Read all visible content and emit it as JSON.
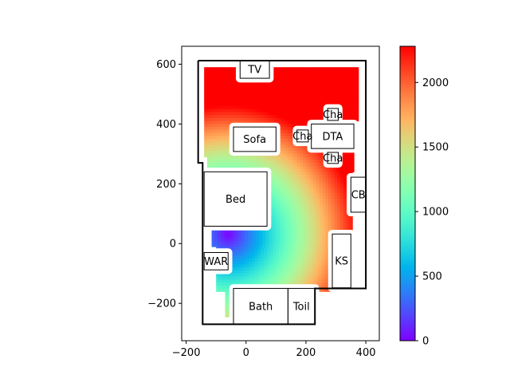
{
  "chart_data": {
    "type": "heatmap",
    "title": "",
    "xlabel": "",
    "ylabel": "",
    "xlim": [
      -215,
      445
    ],
    "ylim": [
      -325,
      660
    ],
    "x_ticks": [
      -200,
      0,
      200,
      400
    ],
    "y_ticks": [
      -200,
      0,
      200,
      400,
      600
    ],
    "x_tick_labels": [
      "−200",
      "0",
      "200",
      "400"
    ],
    "y_tick_labels": [
      "−200",
      "0",
      "200",
      "400",
      "600"
    ],
    "grid": false,
    "colorbar": {
      "colormap": "rainbow",
      "min": 0,
      "max": 2280,
      "ticks": [
        0,
        500,
        1000,
        1500,
        2000
      ],
      "tick_labels": [
        "0",
        "500",
        "1000",
        "1500",
        "2000"
      ]
    },
    "walls": [
      [
        -160,
        612
      ],
      [
        -160,
        270
      ],
      [
        -145,
        270
      ],
      [
        -145,
        -270
      ],
      [
        230,
        -270
      ],
      [
        230,
        -150
      ],
      [
        400,
        -150
      ],
      [
        400,
        612
      ],
      [
        -160,
        612
      ]
    ],
    "heat_source": [
      -60,
      30
    ],
    "heat_scale": 5.3,
    "heat_regions": [
      [
        -140,
        590,
        375,
        410
      ],
      [
        -140,
        410,
        360,
        290
      ],
      [
        -130,
        290,
        360,
        240
      ],
      [
        -115,
        240,
        355,
        -10
      ],
      [
        -100,
        -10,
        280,
        -160
      ],
      [
        -70,
        -160,
        -45,
        -245
      ]
    ],
    "furniture": [
      {
        "label": "TV",
        "x": [
          -20,
          78
        ],
        "y": [
          553,
          612
        ]
      },
      {
        "label": "Sofa",
        "x": [
          -42,
          100
        ],
        "y": [
          308,
          390
        ]
      },
      {
        "label": "Cha",
        "x": [
          170,
          208
        ],
        "y": [
          340,
          380
        ]
      },
      {
        "label": "DTA",
        "x": [
          218,
          360
        ],
        "y": [
          318,
          400
        ]
      },
      {
        "label": "Cha",
        "x": [
          272,
          308
        ],
        "y": [
          412,
          452
        ]
      },
      {
        "label": "Cha",
        "x": [
          272,
          308
        ],
        "y": [
          268,
          305
        ]
      },
      {
        "label": "Bed",
        "x": [
          -140,
          70
        ],
        "y": [
          58,
          240
        ]
      },
      {
        "label": "CB",
        "x": [
          350,
          400
        ],
        "y": [
          105,
          222
        ]
      },
      {
        "label": "KS",
        "x": [
          288,
          350
        ],
        "y": [
          -148,
          32
        ]
      },
      {
        "label": "WAR",
        "x": [
          -140,
          -60
        ],
        "y": [
          -88,
          -30
        ]
      },
      {
        "label": "Bath",
        "x": [
          -42,
          140
        ],
        "y": [
          -270,
          -150
        ]
      },
      {
        "label": "Toil",
        "x": [
          140,
          230
        ],
        "y": [
          -270,
          -150
        ]
      }
    ],
    "furniture_clearance": 14
  }
}
